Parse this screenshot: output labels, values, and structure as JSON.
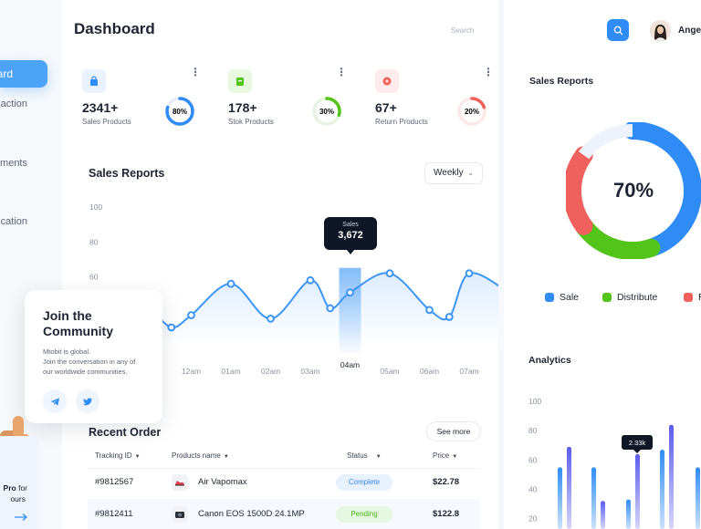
{
  "nav": {
    "active_label": "Dashboard",
    "items": [
      "Transaction",
      "Payments",
      "Notification"
    ]
  },
  "header": {
    "title": "Dashboard",
    "search_placeholder": "Search",
    "user_name": "Angela"
  },
  "stats": [
    {
      "value": "2341+",
      "label": "Sales Products",
      "percent_text": "80%",
      "percent": 80,
      "color": "#2f8cf6",
      "icon_bg": "#eaf2fe",
      "icon": "bag-icon"
    },
    {
      "value": "178+",
      "label": "Stok Products",
      "percent_text": "30%",
      "percent": 30,
      "color": "#53c41a",
      "icon_bg": "#e9f8e1",
      "icon": "box-icon"
    },
    {
      "value": "67+",
      "label": "Return Products",
      "percent_text": "20%",
      "percent": 20,
      "color": "#f0605c",
      "icon_bg": "#fdeceb",
      "icon": "return-icon"
    }
  ],
  "sales_report": {
    "title": "Sales Reports",
    "period": "Weekly",
    "tooltip_label": "Sales",
    "tooltip_value": "3,672"
  },
  "chart_data": [
    {
      "type": "line",
      "title": "Sales Reports",
      "y_ticks": [
        60,
        80,
        100
      ],
      "ylim": [
        20,
        100
      ],
      "categories": [
        "11am",
        "12am",
        "01am",
        "02am",
        "03am",
        "04am",
        "05am",
        "06am",
        "07am"
      ],
      "highlight": "04am",
      "points": [
        {
          "x": 0.0,
          "y": 42
        },
        {
          "x": 0.5,
          "y": 31
        },
        {
          "x": 1.0,
          "y": 38
        },
        {
          "x": 2.0,
          "y": 56
        },
        {
          "x": 3.0,
          "y": 36
        },
        {
          "x": 4.0,
          "y": 58
        },
        {
          "x": 4.5,
          "y": 42
        },
        {
          "x": 5.0,
          "y": 51
        },
        {
          "x": 6.0,
          "y": 62
        },
        {
          "x": 7.0,
          "y": 41
        },
        {
          "x": 7.5,
          "y": 37
        },
        {
          "x": 8.0,
          "y": 62
        },
        {
          "x": 9.0,
          "y": 51
        }
      ]
    },
    {
      "type": "pie",
      "title": "Sales Reports",
      "center_label": "70%",
      "slices": [
        {
          "name": "Sale",
          "value": 45,
          "color": "#2f8cf6"
        },
        {
          "name": "Distribute",
          "value": 20,
          "color": "#53c41a"
        },
        {
          "name": "Return",
          "value": 20,
          "color": "#f0605c"
        },
        {
          "name": "",
          "value": 15,
          "color": "#eef3fb"
        }
      ]
    },
    {
      "type": "bar",
      "title": "Analytics",
      "y_ticks": [
        20,
        40,
        60,
        80,
        100
      ],
      "ylim": [
        16,
        100
      ],
      "tooltip_value": "2.33k",
      "groups": [
        [
          55,
          69
        ],
        [
          55,
          32
        ],
        [
          33,
          64
        ],
        [
          67,
          84
        ],
        [
          55,
          0
        ]
      ]
    }
  ],
  "community": {
    "title": "Join the Community",
    "line1": "Mtobit is global.",
    "line2": "Join the conversation in any of our worldwide communities."
  },
  "pro": {
    "bold": "Pro",
    "suffix": " for",
    "line2": "ours"
  },
  "recent_orders": {
    "title": "Recent Order",
    "see_more": "See more",
    "columns": [
      "Tracking ID",
      "Products name",
      "Status",
      "Price"
    ],
    "rows": [
      {
        "id": "#9812567",
        "product": "Air Vapomax",
        "status": "Complete",
        "price": "$22.78",
        "status_bg": "#e8f1fe",
        "status_fg": "#3b86f0"
      },
      {
        "id": "#9812411",
        "product": "Canon EOS 1500D 24.1MP",
        "status": "Pending",
        "price": "$122.8",
        "status_bg": "#e7f8e0",
        "status_fg": "#46b31a"
      }
    ]
  },
  "right_panel": {
    "sales_title": "Sales Reports",
    "analytics_title": "Analytics"
  }
}
